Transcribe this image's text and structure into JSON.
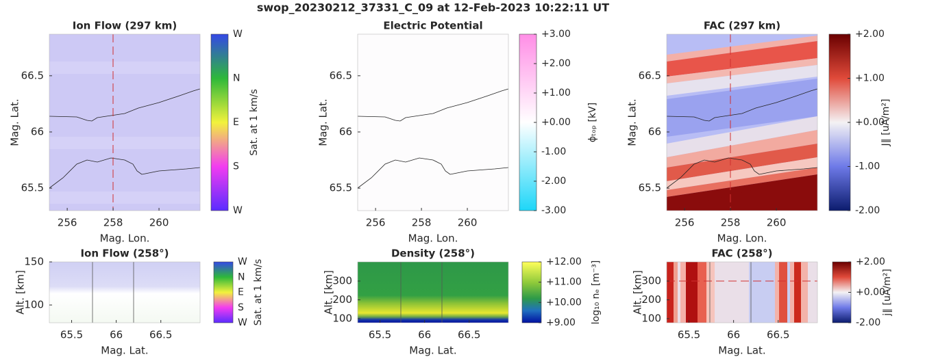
{
  "title": "swop_20230212_37331_C_09 at 12-Feb-2023 10:22:11 UT",
  "chart_data": [
    {
      "type": "heatmap",
      "title": "Ion Flow (297 km)",
      "xlabel": "Mag. Lon.",
      "ylabel": "Mag. Lat.",
      "xlim": [
        255.22,
        261.79
      ],
      "xticks": [
        256,
        258,
        260
      ],
      "ylim": [
        65.3,
        66.87
      ],
      "yticks": [
        65.5,
        66,
        66.5
      ],
      "colorbar": {
        "label": "Sat. at 1 km/s",
        "tick_labels": [
          "W",
          "N",
          "E",
          "S",
          "W"
        ]
      }
    },
    {
      "type": "heatmap",
      "title": "Electric Potential",
      "xlabel": "Mag. Lon.",
      "ylabel": "Mag. Lat.",
      "xlim": [
        255.22,
        261.79
      ],
      "xticks": [
        256,
        258,
        260
      ],
      "ylim": [
        65.3,
        66.87
      ],
      "yticks": [
        65.5,
        66,
        66.5
      ],
      "colorbar": {
        "label": "ϕₜₒₚ [kV]",
        "lim": [
          -3,
          3
        ],
        "ticks": [
          {
            "value": 3,
            "label": "+3.00"
          },
          {
            "value": 2,
            "label": "+2.00"
          },
          {
            "value": 1,
            "label": "+1.00"
          },
          {
            "value": 0,
            "label": "+0.00"
          },
          {
            "value": -1,
            "label": "-1.00"
          },
          {
            "value": -2,
            "label": "-2.00"
          },
          {
            "value": -3,
            "label": "-3.00"
          }
        ]
      }
    },
    {
      "type": "heatmap",
      "title": "FAC (297 km)",
      "xlabel": "Mag. Lon.",
      "ylabel": "Mag. Lat.",
      "xlim": [
        255.22,
        261.79
      ],
      "xticks": [
        256,
        258,
        260
      ],
      "ylim": [
        65.3,
        66.87
      ],
      "yticks": [
        65.5,
        66,
        66.5
      ],
      "colorbar": {
        "label": "J∥ [uA/m²]",
        "lim": [
          -2,
          2
        ],
        "ticks": [
          {
            "value": 2,
            "label": "+2.00"
          },
          {
            "value": 1,
            "label": "+1.00"
          },
          {
            "value": 0,
            "label": "+0.00"
          },
          {
            "value": -1,
            "label": "-1.00"
          },
          {
            "value": -2,
            "label": "-2.00"
          }
        ]
      }
    },
    {
      "type": "heatmap",
      "title": "Ion Flow (258°)",
      "xlabel": "Mag. Lat.",
      "ylabel": "Alt. [km]",
      "xlim": [
        65.25,
        66.94
      ],
      "xticks": [
        65.5,
        66,
        66.5
      ],
      "ylim": [
        79.4,
        150
      ],
      "yticks": [
        100,
        150
      ],
      "colorbar": {
        "label": "Sat. at 1 km/s",
        "tick_labels": [
          "W",
          "N",
          "E",
          "S",
          "W"
        ]
      }
    },
    {
      "type": "heatmap",
      "title": "Density (258°)",
      "xlabel": "Mag. Lat.",
      "ylabel": "Alt. [km]",
      "xlim": [
        65.25,
        66.94
      ],
      "xticks": [
        65.5,
        66,
        66.5
      ],
      "ylim": [
        78,
        402
      ],
      "yticks": [
        100,
        200,
        300
      ],
      "colorbar": {
        "label": "log₁₀ nₑ [m⁻³]",
        "lim": [
          9,
          12
        ],
        "ticks": [
          {
            "value": 12,
            "label": "+12.00"
          },
          {
            "value": 11,
            "label": "+11.00"
          },
          {
            "value": 10,
            "label": "+10.00"
          },
          {
            "value": 9,
            "label": "+9.00"
          }
        ]
      }
    },
    {
      "type": "heatmap",
      "title": "FAC (258°)",
      "xlabel": "Mag. Lat.",
      "ylabel": "Alt. [km]",
      "xlim": [
        65.25,
        66.94
      ],
      "xticks": [
        65.5,
        66,
        66.5
      ],
      "ylim": [
        78,
        402
      ],
      "yticks": [
        100,
        200,
        300
      ],
      "colorbar": {
        "label": "j∥ [uA/m²]",
        "lim": [
          -2,
          2
        ],
        "ticks": [
          {
            "value": 2,
            "label": "+2.00"
          },
          {
            "value": 0,
            "label": "+0.00"
          },
          {
            "value": -2,
            "label": "-2.00"
          }
        ]
      }
    }
  ]
}
